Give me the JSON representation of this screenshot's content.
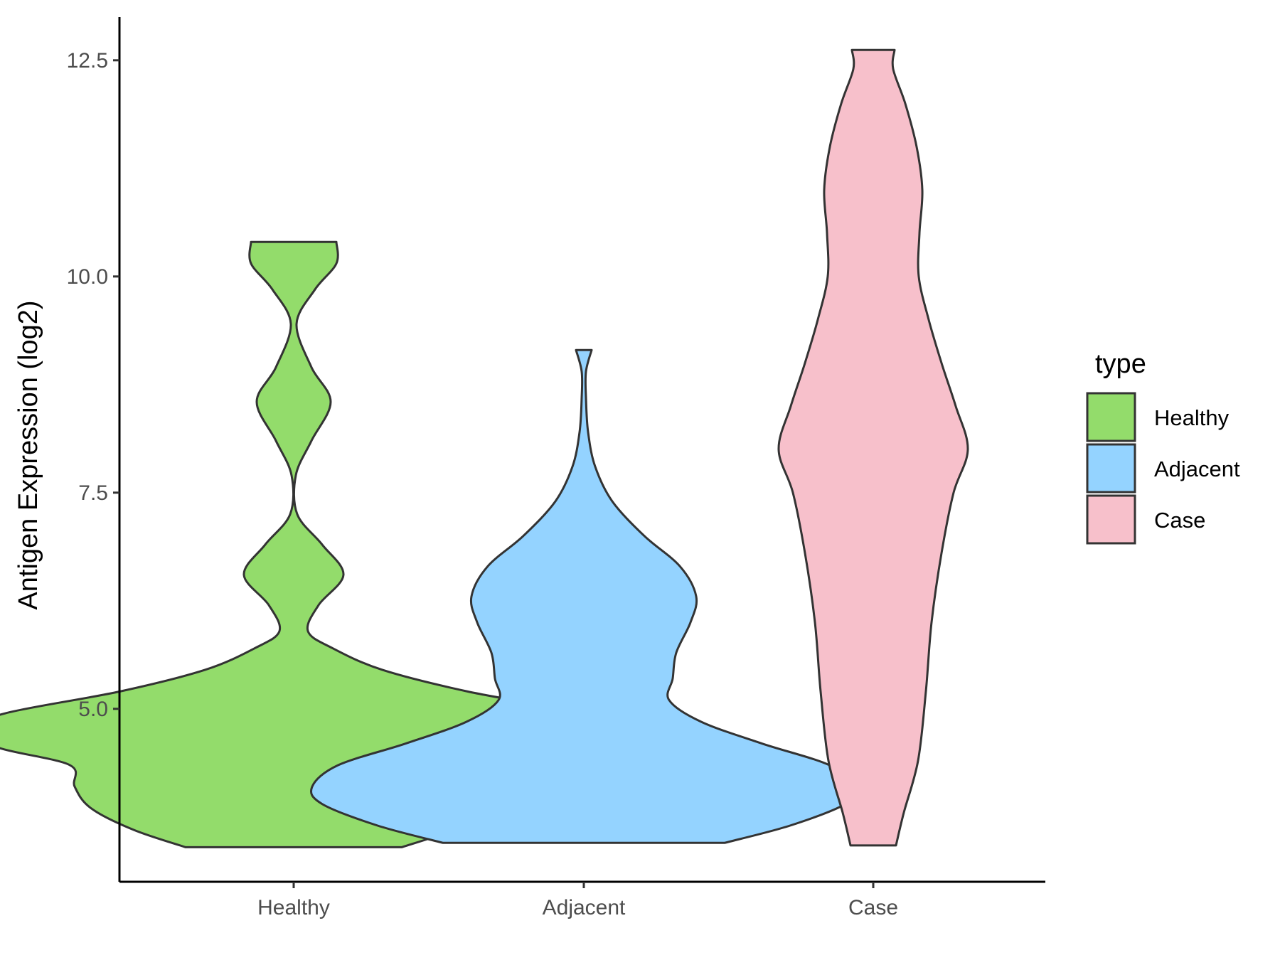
{
  "chart_data": {
    "type": "violin",
    "ylabel": "Antigen Expression (log2)",
    "xlabel": "",
    "title": "",
    "ylim": [
      3.0,
      13.0
    ],
    "y_ticks": [
      5.0,
      7.5,
      10.0,
      12.5
    ],
    "y_tick_labels": [
      "5.0",
      "7.5",
      "10.0",
      "12.5"
    ],
    "categories": [
      "Healthy",
      "Adjacent",
      "Case"
    ],
    "colors": {
      "Healthy": "#93dc6b",
      "Adjacent": "#94d3ff",
      "Case": "#f7c0cb",
      "outline": "#333333"
    },
    "legend": {
      "title": "type",
      "position": "right",
      "entries": [
        "Healthy",
        "Adjacent",
        "Case"
      ]
    },
    "grid": false,
    "series": [
      {
        "category": "Healthy",
        "min": 3.4,
        "max": 10.4,
        "density": [
          [
            3.4,
            0.152
          ],
          [
            3.6,
            0.225
          ],
          [
            3.85,
            0.285
          ],
          [
            4.1,
            0.308
          ],
          [
            4.35,
            0.315
          ],
          [
            4.55,
            0.415
          ],
          [
            4.75,
            0.455
          ],
          [
            4.95,
            0.405
          ],
          [
            5.2,
            0.245
          ],
          [
            5.45,
            0.125
          ],
          [
            5.7,
            0.055
          ],
          [
            5.9,
            0.02
          ],
          [
            6.2,
            0.035
          ],
          [
            6.55,
            0.07
          ],
          [
            6.9,
            0.04
          ],
          [
            7.25,
            0.005
          ],
          [
            7.7,
            0.003
          ],
          [
            8.1,
            0.025
          ],
          [
            8.55,
            0.052
          ],
          [
            8.95,
            0.025
          ],
          [
            9.45,
            0.004
          ],
          [
            9.85,
            0.03
          ],
          [
            10.15,
            0.06
          ],
          [
            10.4,
            0.06
          ]
        ]
      },
      {
        "category": "Adjacent",
        "min": 3.45,
        "max": 9.15,
        "density": [
          [
            3.45,
            0.198
          ],
          [
            3.65,
            0.29
          ],
          [
            3.9,
            0.368
          ],
          [
            4.1,
            0.382
          ],
          [
            4.35,
            0.345
          ],
          [
            4.6,
            0.25
          ],
          [
            4.85,
            0.165
          ],
          [
            5.1,
            0.12
          ],
          [
            5.35,
            0.125
          ],
          [
            5.65,
            0.13
          ],
          [
            6.0,
            0.15
          ],
          [
            6.3,
            0.158
          ],
          [
            6.65,
            0.135
          ],
          [
            7.0,
            0.085
          ],
          [
            7.4,
            0.04
          ],
          [
            7.8,
            0.016
          ],
          [
            8.2,
            0.006
          ],
          [
            8.6,
            0.003
          ],
          [
            8.9,
            0.003
          ],
          [
            9.15,
            0.011
          ]
        ]
      },
      {
        "category": "Case",
        "min": 3.42,
        "max": 12.62,
        "density": [
          [
            3.42,
            0.032
          ],
          [
            3.8,
            0.043
          ],
          [
            4.4,
            0.063
          ],
          [
            5.2,
            0.074
          ],
          [
            6.0,
            0.082
          ],
          [
            6.8,
            0.096
          ],
          [
            7.5,
            0.113
          ],
          [
            8.0,
            0.133
          ],
          [
            8.5,
            0.116
          ],
          [
            9.0,
            0.096
          ],
          [
            9.5,
            0.078
          ],
          [
            10.0,
            0.064
          ],
          [
            10.5,
            0.065
          ],
          [
            11.0,
            0.069
          ],
          [
            11.5,
            0.061
          ],
          [
            12.0,
            0.045
          ],
          [
            12.4,
            0.028
          ],
          [
            12.62,
            0.03
          ]
        ]
      }
    ]
  }
}
